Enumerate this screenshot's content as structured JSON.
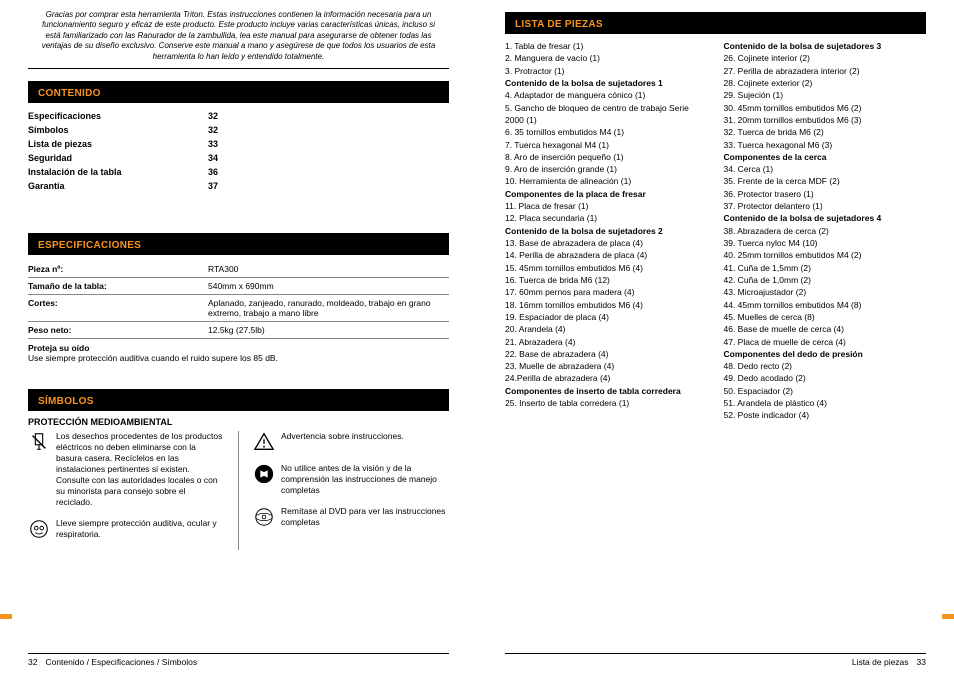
{
  "intro": "Gracias por comprar esta herramienta Triton. Estas instrucciones contienen la información necesaria para un funcionamiento seguro y eficaz de este producto.\nEste producto incluye varias características únicas, incluso si está familiarizado con las Ranurador de la zambullida, lea este manual para asegurarse de obtener todas las ventajas de su diseño exclusivo. Conserve este manual a mano y asegúrese de que todos los usuarios de esta herramienta lo han leído y entendido totalmente.",
  "sections": {
    "contenido": "CONTENIDO",
    "especificaciones": "ESPECIFICACIONES",
    "simbolos": "SÍMBOLOS",
    "lista": "LISTA DE PIEZAS"
  },
  "toc": [
    {
      "label": "Especificaciones",
      "page": "32"
    },
    {
      "label": "Símbolos",
      "page": "32"
    },
    {
      "label": "Lista de piezas",
      "page": "33"
    },
    {
      "label": "Seguridad",
      "page": "34"
    },
    {
      "label": "Instalación de la tabla",
      "page": "36"
    },
    {
      "label": "Garantía",
      "page": "37"
    }
  ],
  "spec": {
    "rows": [
      {
        "k": "Pieza nº:",
        "v": "RTA300"
      },
      {
        "k": "Tamaño de la tabla:",
        "v": "540mm x 690mm"
      },
      {
        "k": "Cortes:",
        "v": "Aplanado, zanjeado, ranurado, moldeado, trabajo en grano extremo, trabajo a mano libre"
      },
      {
        "k": "Peso neto:",
        "v": "12.5kg (27.5lb)"
      }
    ],
    "note_b": "Proteja su oído",
    "note": "Use siempre protección auditiva cuando el ruido supere los 85 dB."
  },
  "simbolos": {
    "title": "PROTECCIÓN MEDIOAMBIENTAL",
    "left": [
      "Los desechos procedentes de los productos eléctricos no deben eliminarse con la basura casera. Recíclelos en las instalaciones pertinentes si existen. Consulte con las autoridades locales o con su minorista para consejo sobre el reciclado.",
      "Lleve siempre protección auditiva, ocular y respiratoria."
    ],
    "right": [
      "Advertencia sobre instrucciones.",
      "No utilice antes de la visión y de la comprensión las instrucciones de manejo completas",
      "Remítase al DVD para ver las instrucciones completas"
    ]
  },
  "parts": {
    "col1": [
      {
        "t": "1. Tabla de fresar (1)"
      },
      {
        "t": "2. Manguera de vacío (1)"
      },
      {
        "t": "3. Protractor (1)"
      },
      {
        "t": "Contenido de la bolsa de sujetadores 1",
        "b": true
      },
      {
        "t": "4. Adaptador de manguera cónico (1)"
      },
      {
        "t": "5. Gancho de bloqueo de centro de trabajo Serie 2000 (1)"
      },
      {
        "t": "6. 35 tornillos embutidos M4 (1)"
      },
      {
        "t": "7. Tuerca hexagonal M4 (1)"
      },
      {
        "t": "8. Aro de inserción pequeño (1)"
      },
      {
        "t": "9. Aro de inserción grande (1)"
      },
      {
        "t": "10. Herramienta de alineación (1)"
      },
      {
        "t": "Componentes de la placa de fresar",
        "b": true
      },
      {
        "t": "11. Placa de fresar (1)"
      },
      {
        "t": "12. Placa secundaria (1)"
      },
      {
        "t": "Contenido de la bolsa de sujetadores 2",
        "b": true
      },
      {
        "t": "13. Base de abrazadera de placa (4)"
      },
      {
        "t": "14. Perilla de abrazadera de placa (4)"
      },
      {
        "t": "15. 45mm tornillos embutidos M6 (4)"
      },
      {
        "t": "16. Tuerca de brida M6 (12)"
      },
      {
        "t": "17. 60mm pernos para madera (4)"
      },
      {
        "t": "18. 16mm tornillos embutidos M6 (4)"
      },
      {
        "t": "19. Espaciador de placa (4)"
      },
      {
        "t": "20. Arandela (4)"
      },
      {
        "t": "21. Abrazadera (4)"
      },
      {
        "t": "22. Base de abrazadera (4)"
      },
      {
        "t": "23. Muelle de abrazadera (4)"
      },
      {
        "t": "24.Perilla de abrazadera (4)"
      },
      {
        "t": "Componentes de inserto de tabla corredera",
        "b": true
      },
      {
        "t": "25. Inserto de tabla corredera (1)"
      }
    ],
    "col2": [
      {
        "t": "Contenido de la bolsa de sujetadores 3",
        "b": true
      },
      {
        "t": "26. Cojinete interior (2)"
      },
      {
        "t": "27. Perilla de abrazadera interior (2)"
      },
      {
        "t": "28. Cojinete exterior (2)"
      },
      {
        "t": "29. Sujeción (1)"
      },
      {
        "t": "30. 45mm tornillos embutidos M6 (2)"
      },
      {
        "t": "31. 20mm tornillos embutidos M6 (3)"
      },
      {
        "t": "32. Tuerca de brida M6 (2)"
      },
      {
        "t": "33. Tuerca hexagonal M6 (3)"
      },
      {
        "t": "Componentes de la cerca",
        "b": true
      },
      {
        "t": "34. Cerca (1)"
      },
      {
        "t": "35. Frente de la cerca MDF (2)"
      },
      {
        "t": "36. Protector trasero (1)"
      },
      {
        "t": "37. Protector delantero (1)"
      },
      {
        "t": "Contenido de la bolsa de sujetadores 4",
        "b": true
      },
      {
        "t": "38. Abrazadera de cerca (2)"
      },
      {
        "t": "39. Tuerca nyloc M4 (10)"
      },
      {
        "t": "40. 25mm tornillos embutidos M4 (2)"
      },
      {
        "t": "41. Cuña de 1,5mm (2)"
      },
      {
        "t": "42. Cuña de 1,0mm (2)"
      },
      {
        "t": "43. Microajustador (2)"
      },
      {
        "t": "44. 45mm tornillos embutidos M4 (8)"
      },
      {
        "t": "45. Muelles de cerca (8)"
      },
      {
        "t": "46. Base de muelle de cerca (4)"
      },
      {
        "t": "47. Placa de muelle de cerca (4)"
      },
      {
        "t": "Componentes del dedo de presión",
        "b": true
      },
      {
        "t": "48. Dedo recto (2)"
      },
      {
        "t": "49. Dedo acodado (2)"
      },
      {
        "t": "50. Espaciador (2)"
      },
      {
        "t": "51. Arandela de plástico (4)"
      },
      {
        "t": "52. Poste indicador (4)"
      }
    ]
  },
  "footers": {
    "left_num": "32",
    "left_text": "Contenido / Especificaciones / Símbolos",
    "right_text": "Lista de piezas",
    "right_num": "33"
  }
}
